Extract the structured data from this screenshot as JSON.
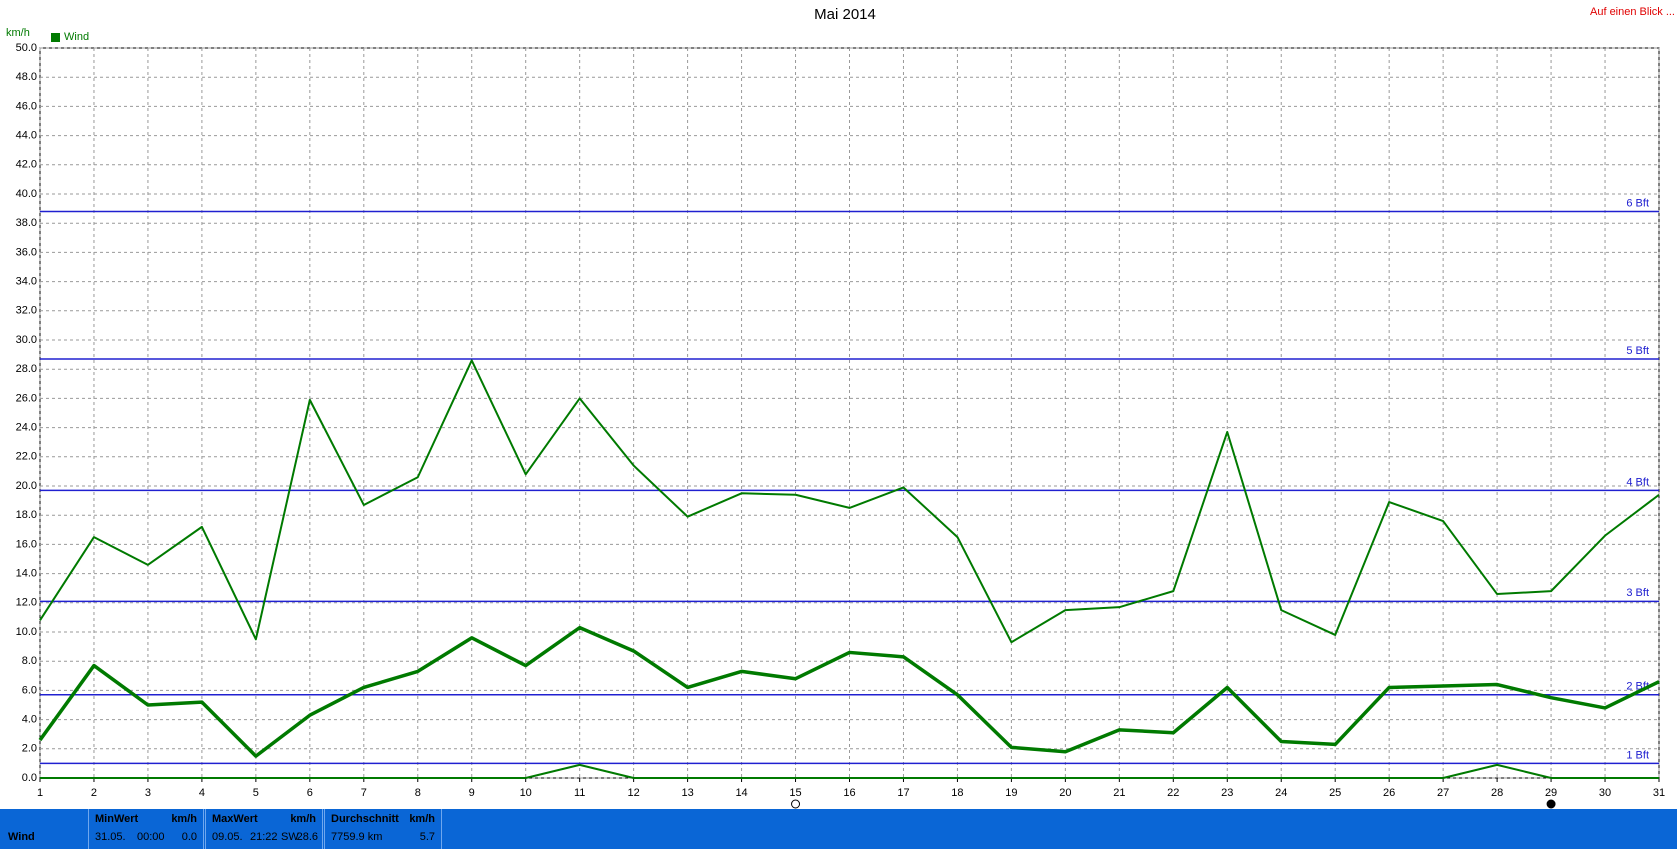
{
  "chart_data": {
    "type": "line",
    "title": "Mai 2014",
    "ylabel": "km/h",
    "legend_label": "Wind",
    "legend_color": "#007a00",
    "x": [
      1,
      2,
      3,
      4,
      5,
      6,
      7,
      8,
      9,
      10,
      11,
      12,
      13,
      14,
      15,
      16,
      17,
      18,
      19,
      20,
      21,
      22,
      23,
      24,
      25,
      26,
      27,
      28,
      29,
      30,
      31
    ],
    "xlim": [
      1,
      31
    ],
    "xticks": [
      1,
      2,
      3,
      4,
      5,
      6,
      7,
      8,
      9,
      10,
      11,
      12,
      13,
      14,
      15,
      16,
      17,
      18,
      19,
      20,
      21,
      22,
      23,
      24,
      25,
      26,
      27,
      28,
      29,
      30,
      31
    ],
    "ylim": [
      0,
      50
    ],
    "yticks": [
      {
        "value": 0,
        "label": "0.0"
      },
      {
        "value": 2,
        "label": "2.0"
      },
      {
        "value": 4,
        "label": "4.0"
      },
      {
        "value": 6,
        "label": "6.0"
      },
      {
        "value": 8,
        "label": "8.0"
      },
      {
        "value": 10,
        "label": "10.0"
      },
      {
        "value": 12,
        "label": "12.0"
      },
      {
        "value": 14,
        "label": "14.0"
      },
      {
        "value": 16,
        "label": "16.0"
      },
      {
        "value": 18,
        "label": "18.0"
      },
      {
        "value": 20,
        "label": "20.0"
      },
      {
        "value": 22,
        "label": "22.0"
      },
      {
        "value": 24,
        "label": "24.0"
      },
      {
        "value": 26,
        "label": "26.0"
      },
      {
        "value": 28,
        "label": "28.0"
      },
      {
        "value": 30,
        "label": "30.0"
      },
      {
        "value": 32,
        "label": "32.0"
      },
      {
        "value": 34,
        "label": "34.0"
      },
      {
        "value": 36,
        "label": "36.0"
      },
      {
        "value": 38,
        "label": "38.0"
      },
      {
        "value": 40,
        "label": "40.0"
      },
      {
        "value": 42,
        "label": "42.0"
      },
      {
        "value": 44,
        "label": "44.0"
      },
      {
        "value": 46,
        "label": "46.0"
      },
      {
        "value": 48,
        "label": "48.0"
      },
      {
        "value": 50,
        "label": "50.0"
      }
    ],
    "grid": true,
    "series": [
      {
        "color": "#007a00",
        "width": 2,
        "values": [
          10.8,
          16.5,
          14.6,
          17.2,
          9.5,
          25.9,
          18.7,
          20.6,
          28.6,
          20.8,
          26.0,
          21.4,
          17.9,
          19.5,
          19.4,
          18.5,
          19.9,
          16.5,
          9.3,
          11.5,
          11.7,
          12.8,
          23.7,
          11.5,
          9.8,
          18.9,
          17.6,
          12.6,
          12.8,
          16.6,
          19.4
        ]
      },
      {
        "color": "#007a00",
        "width": 3.5,
        "values": [
          2.6,
          7.7,
          5.0,
          5.2,
          1.5,
          4.3,
          6.2,
          7.3,
          9.6,
          7.7,
          10.3,
          8.7,
          6.2,
          7.3,
          6.8,
          8.6,
          8.3,
          5.7,
          2.1,
          1.8,
          3.3,
          3.1,
          6.2,
          2.5,
          2.3,
          6.2,
          6.3,
          6.4,
          5.5,
          4.8,
          6.6
        ]
      },
      {
        "color": "#007a00",
        "width": 2,
        "values": [
          0,
          0,
          0,
          0,
          0,
          0,
          0,
          0,
          0,
          0,
          0.9,
          0,
          0,
          0,
          0,
          0,
          0,
          0,
          0,
          0,
          0,
          0,
          0,
          0,
          0,
          0,
          0,
          0.9,
          0,
          0,
          0
        ]
      }
    ],
    "thresholds_color": "#2020d0",
    "thresholds": [
      {
        "value": 1.0,
        "label": "1 Bft"
      },
      {
        "value": 5.7,
        "label": "2 Bft"
      },
      {
        "value": 12.1,
        "label": "3 Bft"
      },
      {
        "value": 19.7,
        "label": "4 Bft"
      },
      {
        "value": 28.7,
        "label": "5 Bft"
      },
      {
        "value": 38.8,
        "label": "6 Bft"
      }
    ]
  },
  "header": {
    "link": "Auf einen Blick ..."
  },
  "footer": {
    "row_label": "Wind",
    "min": {
      "title": "MinWert",
      "unit": "km/h",
      "date": "31.05.",
      "time": "00:00",
      "value": "0.0"
    },
    "max": {
      "title": "MaxWert",
      "unit": "km/h",
      "date": "09.05.",
      "time": "21:22",
      "dir": "SW",
      "value": "28.6"
    },
    "avg": {
      "title": "Durchschnitt",
      "unit": "km/h",
      "total": "7759.9 km",
      "value": "5.7"
    }
  }
}
